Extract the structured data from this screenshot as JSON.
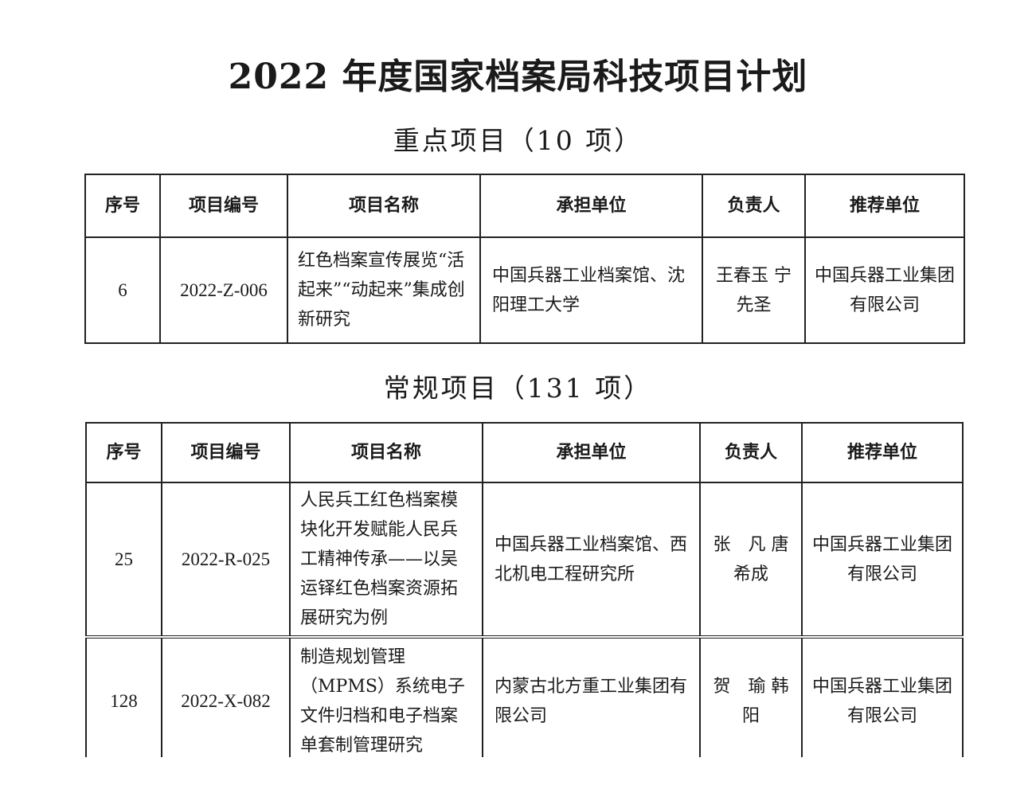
{
  "title": "2022 年度国家档案局科技项目计划",
  "sections": [
    {
      "heading": "重点项目（10 项）",
      "columns": [
        "序号",
        "项目编号",
        "项目名称",
        "承担单位",
        "负责人",
        "推荐单位"
      ],
      "rows": [
        {
          "no": "6",
          "code": "2022-Z-006",
          "name": "红色档案宣传展览“活起来”“动起来”集成创新研究",
          "unit": "中国兵器工业档案馆、沈阳理工大学",
          "leader": "王春玉 宁先圣",
          "recommender": "中国兵器工业集团有限公司"
        }
      ]
    },
    {
      "heading": "常规项目（131 项）",
      "columns": [
        "序号",
        "项目编号",
        "项目名称",
        "承担单位",
        "负责人",
        "推荐单位"
      ],
      "rows": [
        {
          "no": "25",
          "code": "2022-R-025",
          "name": "人民兵工红色档案模块化开发赋能人民兵工精神传承——以吴运铎红色档案资源拓展研究为例",
          "unit": "中国兵器工业档案馆、西北机电工程研究所",
          "leader": "张　凡 唐希成",
          "recommender": "中国兵器工业集团有限公司"
        },
        {
          "no": "128",
          "code": "2022-X-082",
          "name": "制造规划管理（MPMS）系统电子文件归档和电子档案单套制管理研究",
          "unit": "内蒙古北方重工业集团有限公司",
          "leader": "贺　瑜 韩　阳",
          "recommender": "中国兵器工业集团有限公司"
        }
      ]
    }
  ]
}
